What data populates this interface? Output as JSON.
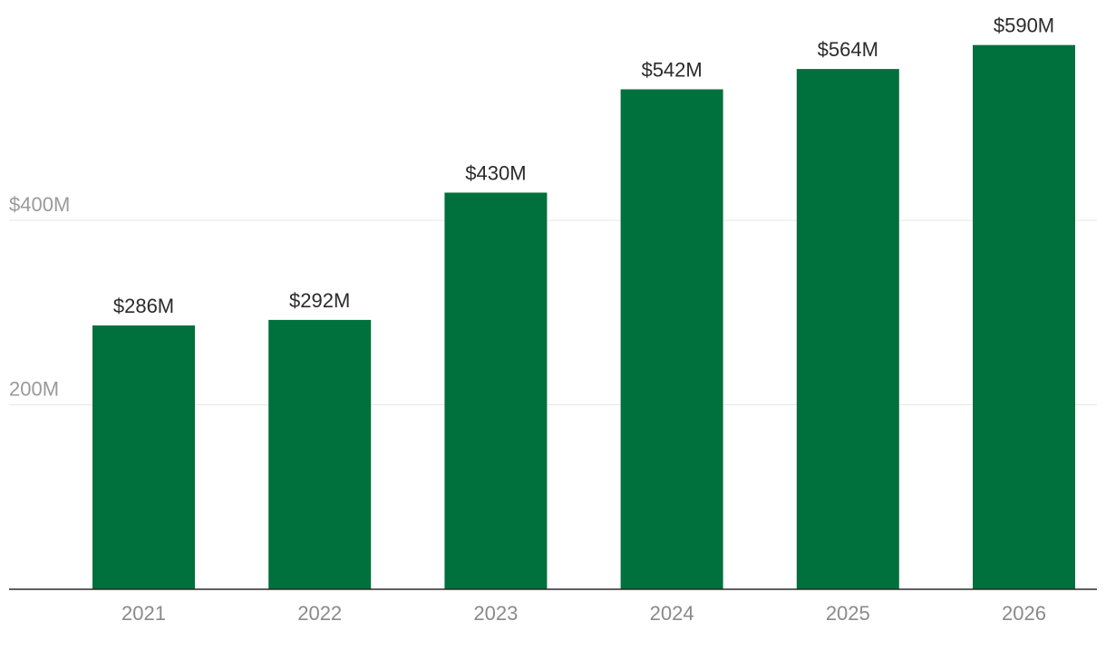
{
  "chart_data": {
    "type": "bar",
    "categories": [
      "2021",
      "2022",
      "2023",
      "2024",
      "2025",
      "2026"
    ],
    "values": [
      286,
      292,
      430,
      542,
      564,
      590
    ],
    "value_labels": [
      "$286M",
      "$292M",
      "$430M",
      "$542M",
      "$564M",
      "$590M"
    ],
    "y_ticks": [
      {
        "value": 200,
        "label": "200M"
      },
      {
        "value": 400,
        "label": "$400M"
      }
    ],
    "ylim": [
      0,
      600
    ],
    "grid": true,
    "bar_color": "#00703c",
    "title": "",
    "xlabel": "",
    "ylabel": ""
  }
}
